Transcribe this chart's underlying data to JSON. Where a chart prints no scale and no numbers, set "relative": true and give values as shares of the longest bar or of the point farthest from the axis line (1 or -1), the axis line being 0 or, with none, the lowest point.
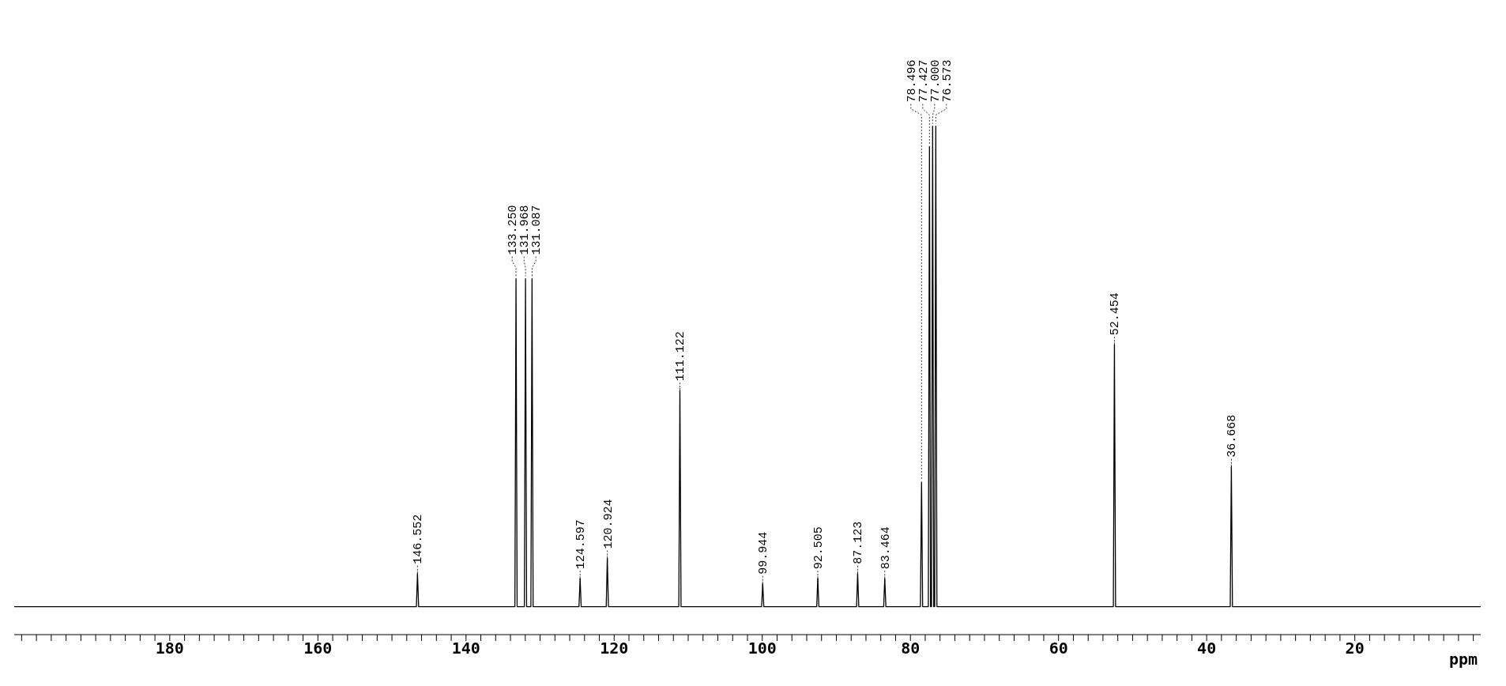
{
  "chart_data": {
    "type": "line",
    "relative": true,
    "xlabel": "ppm",
    "marker": "none",
    "line_style": "solid",
    "tick_labels": "x",
    "xlim": [
      201,
      3
    ],
    "xticks": [
      {
        "value": 200,
        "label": null
      },
      {
        "value": 198,
        "label": null
      },
      {
        "value": 196,
        "label": null
      },
      {
        "value": 194,
        "label": null
      },
      {
        "value": 192,
        "label": null
      },
      {
        "value": 190,
        "label": null
      },
      {
        "value": 188,
        "label": null
      },
      {
        "value": 186,
        "label": null
      },
      {
        "value": 184,
        "label": null
      },
      {
        "value": 182,
        "label": null
      },
      180,
      {
        "value": 178,
        "label": null
      },
      {
        "value": 176,
        "label": null
      },
      {
        "value": 174,
        "label": null
      },
      {
        "value": 172,
        "label": null
      },
      {
        "value": 170,
        "label": null
      },
      {
        "value": 168,
        "label": null
      },
      {
        "value": 166,
        "label": null
      },
      {
        "value": 164,
        "label": null
      },
      {
        "value": 162,
        "label": null
      },
      160,
      {
        "value": 158,
        "label": null
      },
      {
        "value": 156,
        "label": null
      },
      {
        "value": 154,
        "label": null
      },
      {
        "value": 152,
        "label": null
      },
      {
        "value": 150,
        "label": null
      },
      {
        "value": 148,
        "label": null
      },
      {
        "value": 146,
        "label": null
      },
      {
        "value": 144,
        "label": null
      },
      {
        "value": 142,
        "label": null
      },
      140,
      {
        "value": 138,
        "label": null
      },
      {
        "value": 136,
        "label": null
      },
      {
        "value": 134,
        "label": null
      },
      {
        "value": 132,
        "label": null
      },
      {
        "value": 130,
        "label": null
      },
      {
        "value": 128,
        "label": null
      },
      {
        "value": 126,
        "label": null
      },
      {
        "value": 124,
        "label": null
      },
      {
        "value": 122,
        "label": null
      },
      120,
      {
        "value": 118,
        "label": null
      },
      {
        "value": 116,
        "label": null
      },
      {
        "value": 114,
        "label": null
      },
      {
        "value": 112,
        "label": null
      },
      {
        "value": 110,
        "label": null
      },
      {
        "value": 108,
        "label": null
      },
      {
        "value": 106,
        "label": null
      },
      {
        "value": 104,
        "label": null
      },
      {
        "value": 102,
        "label": null
      },
      100,
      {
        "value": 98,
        "label": null
      },
      {
        "value": 96,
        "label": null
      },
      {
        "value": 94,
        "label": null
      },
      {
        "value": 92,
        "label": null
      },
      {
        "value": 90,
        "label": null
      },
      {
        "value": 88,
        "label": null
      },
      {
        "value": 86,
        "label": null
      },
      {
        "value": 84,
        "label": null
      },
      {
        "value": 82,
        "label": null
      },
      80,
      {
        "value": 78,
        "label": null
      },
      {
        "value": 76,
        "label": null
      },
      {
        "value": 74,
        "label": null
      },
      {
        "value": 72,
        "label": null
      },
      {
        "value": 70,
        "label": null
      },
      {
        "value": 68,
        "label": null
      },
      {
        "value": 66,
        "label": null
      },
      {
        "value": 64,
        "label": null
      },
      {
        "value": 62,
        "label": null
      },
      60,
      {
        "value": 58,
        "label": null
      },
      {
        "value": 56,
        "label": null
      },
      {
        "value": 54,
        "label": null
      },
      {
        "value": 52,
        "label": null
      },
      {
        "value": 50,
        "label": null
      },
      {
        "value": 48,
        "label": null
      },
      {
        "value": 46,
        "label": null
      },
      {
        "value": 44,
        "label": null
      },
      {
        "value": 42,
        "label": null
      },
      40,
      {
        "value": 38,
        "label": null
      },
      {
        "value": 36,
        "label": null
      },
      {
        "value": 34,
        "label": null
      },
      {
        "value": 32,
        "label": null
      },
      {
        "value": 30,
        "label": null
      },
      {
        "value": 28,
        "label": null
      },
      {
        "value": 26,
        "label": null
      },
      {
        "value": 24,
        "label": null
      },
      {
        "value": 22,
        "label": null
      },
      20,
      {
        "value": 18,
        "label": null
      },
      {
        "value": 16,
        "label": null
      },
      {
        "value": 14,
        "label": null
      },
      {
        "value": 12,
        "label": null
      },
      {
        "value": 10,
        "label": null
      },
      {
        "value": 8,
        "label": null
      },
      {
        "value": 6,
        "label": null
      },
      {
        "value": 4,
        "label": null
      }
    ],
    "series": [
      {
        "color": "#000000",
        "x": [
          201,
          146.7,
          146.552,
          146.4,
          133.4,
          133.25,
          133.1,
          132.12,
          131.968,
          131.82,
          131.24,
          131.087,
          130.94,
          124.75,
          124.597,
          124.45,
          121.07,
          120.924,
          120.77,
          111.27,
          111.122,
          110.97,
          100.09,
          99.944,
          99.79,
          92.65,
          92.505,
          92.36,
          87.27,
          87.123,
          86.97,
          83.61,
          83.464,
          83.31,
          78.65,
          78.496,
          78.35,
          77.58,
          77.427,
          77.28,
          77.15,
          77.0,
          76.85,
          76.72,
          76.573,
          76.42,
          52.6,
          52.454,
          52.3,
          36.82,
          36.668,
          36.52,
          3
        ],
        "values": [
          0.055,
          0.055,
          0.12,
          0.055,
          0.055,
          0.7,
          0.055,
          0.055,
          0.7,
          0.055,
          0.055,
          0.7,
          0.055,
          0.055,
          0.11,
          0.055,
          0.055,
          0.15,
          0.055,
          0.055,
          0.48,
          0.055,
          0.055,
          0.1,
          0.055,
          0.055,
          0.11,
          0.055,
          0.055,
          0.12,
          0.055,
          0.055,
          0.11,
          0.055,
          0.055,
          0.3,
          0.055,
          0.055,
          0.96,
          0.055,
          0.055,
          1,
          0.055,
          0.055,
          1,
          0.055,
          0.055,
          0.57,
          0.055,
          0.055,
          0.33,
          0.055,
          0.055
        ]
      }
    ],
    "annotations": [
      {
        "text": "146.552",
        "x": 146.552,
        "y": 0.12
      },
      {
        "text": "133.250",
        "x": 133.25,
        "y": 0.7
      },
      {
        "text": "131.968",
        "x": 131.968,
        "y": 0.7
      },
      {
        "text": "131.087",
        "x": 131.087,
        "y": 0.7
      },
      {
        "text": "124.597",
        "x": 124.597,
        "y": 0.11
      },
      {
        "text": "120.924",
        "x": 120.924,
        "y": 0.15
      },
      {
        "text": "111.122",
        "x": 111.122,
        "y": 0.48
      },
      {
        "text": "99.944",
        "x": 99.944,
        "y": 0.1
      },
      {
        "text": "92.505",
        "x": 92.505,
        "y": 0.11
      },
      {
        "text": "87.123",
        "x": 87.123,
        "y": 0.12
      },
      {
        "text": "83.464",
        "x": 83.464,
        "y": 0.11
      },
      {
        "text": "78.496",
        "x": 78.496,
        "y": 0.3
      },
      {
        "text": "77.427",
        "x": 77.427,
        "y": 0.96
      },
      {
        "text": "77.000",
        "x": 77.0,
        "y": 1
      },
      {
        "text": "76.573",
        "x": 76.573,
        "y": 1
      },
      {
        "text": "52.454",
        "x": 52.454,
        "y": 0.57
      },
      {
        "text": "36.668",
        "x": 36.668,
        "y": 0.33
      }
    ]
  }
}
